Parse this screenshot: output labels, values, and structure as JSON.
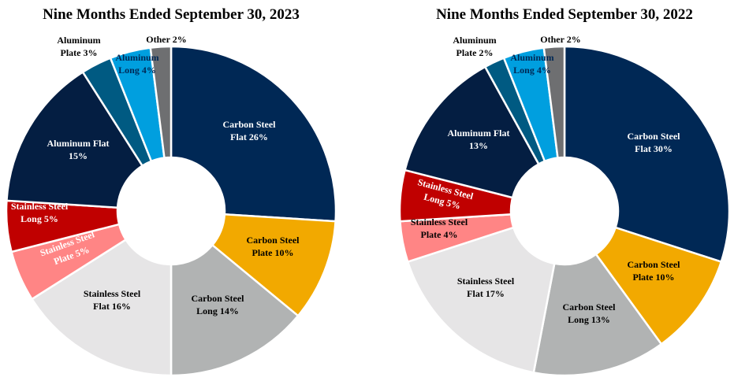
{
  "chart_data": [
    {
      "type": "pie",
      "title": "Nine Months Ended September 30, 2023",
      "start": "top, clockwise",
      "slices": [
        {
          "name": "Carbon Steel Flat",
          "value": 26,
          "label": [
            "Carbon Steel",
            "Flat 26%"
          ],
          "color": "#002855",
          "text_color": "#ffffff"
        },
        {
          "name": "Carbon Steel Plate",
          "value": 10,
          "label": [
            "Carbon Steel",
            "Plate 10%"
          ],
          "color": "#F2A900",
          "text_color": "#000000"
        },
        {
          "name": "Carbon Steel Long",
          "value": 14,
          "label": [
            "Carbon Steel",
            "Long 14%"
          ],
          "color": "#B1B3B3",
          "text_color": "#000000"
        },
        {
          "name": "Stainless Steel Flat",
          "value": 16,
          "label": [
            "Stainless Steel",
            "Flat 16%"
          ],
          "color": "#E6E5E6",
          "text_color": "#000000"
        },
        {
          "name": "Stainless Steel Plate",
          "value": 5,
          "label": [
            "Stainless Steel",
            "Plate 5%"
          ],
          "color": "#FF8585",
          "text_color": "#ffffff"
        },
        {
          "name": "Stainless Steel Long",
          "value": 5,
          "label": [
            "Stainless Steel",
            "Long  5%"
          ],
          "color": "#C00000",
          "text_color": "#ffffff"
        },
        {
          "name": "Aluminum Flat",
          "value": 15,
          "label": [
            "Aluminum Flat",
            "15%"
          ],
          "color": "#041E42",
          "text_color": "#ffffff"
        },
        {
          "name": "Aluminum Plate",
          "value": 3,
          "label": [
            "Aluminum",
            "Plate 3%"
          ],
          "color": "#005A82",
          "text_color": "#000000"
        },
        {
          "name": "Aluminum Long",
          "value": 4,
          "label": [
            "Aluminum",
            "Long 4%"
          ],
          "color": "#009FDF",
          "text_color": "#002855"
        },
        {
          "name": "Other",
          "value": 2,
          "label": [
            "Other 2%"
          ],
          "color": "#6E6F71",
          "text_color": "#000000"
        }
      ]
    },
    {
      "type": "pie",
      "title": "Nine Months Ended September 30, 2022",
      "start": "top, clockwise",
      "slices": [
        {
          "name": "Carbon Steel Flat",
          "value": 30,
          "label": [
            "Carbon Steel",
            "Flat 30%"
          ],
          "color": "#002855",
          "text_color": "#ffffff"
        },
        {
          "name": "Carbon Steel Plate",
          "value": 10,
          "label": [
            "Carbon Steel",
            "Plate 10%"
          ],
          "color": "#F2A900",
          "text_color": "#000000"
        },
        {
          "name": "Carbon Steel Long",
          "value": 13,
          "label": [
            "Carbon Steel",
            "Long 13%"
          ],
          "color": "#B1B3B3",
          "text_color": "#000000"
        },
        {
          "name": "Stainless Steel Flat",
          "value": 17,
          "label": [
            "Stainless Steel",
            "Flat 17%"
          ],
          "color": "#E6E5E6",
          "text_color": "#000000"
        },
        {
          "name": "Stainless Steel Plate",
          "value": 4,
          "label": [
            "Stainless Steel",
            "Plate 4%"
          ],
          "color": "#FF8585",
          "text_color": "#000000"
        },
        {
          "name": "Stainless Steel Long",
          "value": 5,
          "label": [
            "Stainless Steel",
            "Long  5%"
          ],
          "color": "#C00000",
          "text_color": "#ffffff"
        },
        {
          "name": "Aluminum Flat",
          "value": 13,
          "label": [
            "Aluminum Flat",
            "13%"
          ],
          "color": "#041E42",
          "text_color": "#ffffff"
        },
        {
          "name": "Aluminum Plate",
          "value": 2,
          "label": [
            "Aluminum",
            "Plate 2%"
          ],
          "color": "#005A82",
          "text_color": "#000000"
        },
        {
          "name": "Aluminum Long",
          "value": 4,
          "label": [
            "Aluminum",
            "Long 4%"
          ],
          "color": "#009FDF",
          "text_color": "#002855"
        },
        {
          "name": "Other",
          "value": 2,
          "label": [
            "Other 2%"
          ],
          "color": "#6E6F71",
          "text_color": "#000000"
        }
      ]
    }
  ]
}
